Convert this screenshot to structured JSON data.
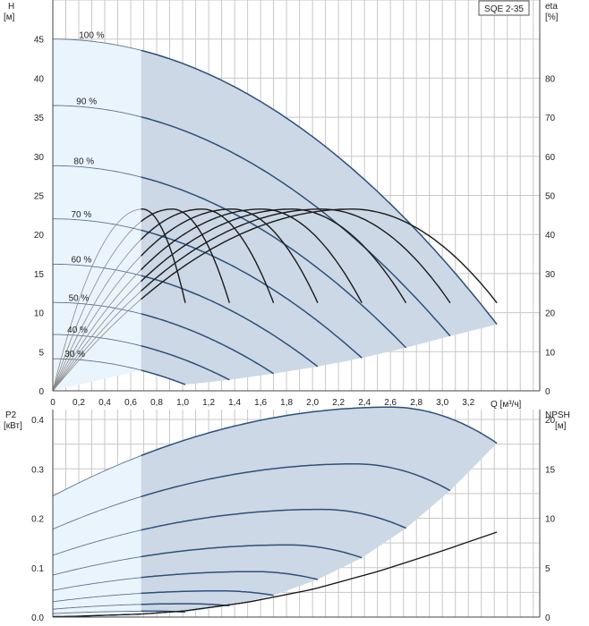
{
  "chart_data": [
    {
      "type": "line",
      "title": "SQE 2-35",
      "xlabel": "Q [м³/ч]",
      "ylabel": "H [м]",
      "ylabel_name": "H",
      "ylabel_unit": "[м]",
      "y2label_name": "eta",
      "y2label_unit": "[%]",
      "xlim": [
        0,
        3.75
      ],
      "ylim": [
        0,
        50
      ],
      "y2lim": [
        0,
        100
      ],
      "x_ticks": [
        "0",
        "0,2",
        "0,4",
        "0,6",
        "0,8",
        "1,0",
        "1,2",
        "1,4",
        "1,6",
        "1,8",
        "2,0",
        "2,2",
        "2,4",
        "2,6",
        "2,8",
        "3,0",
        "3,2"
      ],
      "y_ticks": [
        "0",
        "5",
        "10",
        "15",
        "20",
        "25",
        "30",
        "35",
        "40",
        "45"
      ],
      "y2_ticks": [
        "0",
        "10",
        "20",
        "30",
        "40",
        "50",
        "60",
        "70",
        "80"
      ],
      "grid": true,
      "light_region_x": [
        0,
        0.68
      ],
      "head_series": [
        {
          "name": "100 %",
          "h0": 45.0,
          "qmax": 3.42,
          "hend": 8.5
        },
        {
          "name": "90 %",
          "h0": 36.5,
          "qmax": 3.06,
          "hend": 7.0
        },
        {
          "name": "80 %",
          "h0": 28.8,
          "qmax": 2.72,
          "hend": 5.5
        },
        {
          "name": "70 %",
          "h0": 22.0,
          "qmax": 2.38,
          "hend": 4.2
        },
        {
          "name": "60 %",
          "h0": 16.2,
          "qmax": 2.04,
          "hend": 3.1
        },
        {
          "name": "50 %",
          "h0": 11.3,
          "qmax": 1.7,
          "hend": 2.2
        },
        {
          "name": "40 %",
          "h0": 7.2,
          "qmax": 1.36,
          "hend": 1.4
        },
        {
          "name": "30 %",
          "h0": 4.1,
          "qmax": 1.02,
          "hend": 0.8
        }
      ],
      "efficiency_series": [
        {
          "name": "100 %",
          "peak_q": 2.3,
          "peak_eta": 46.5,
          "end_q": 3.42,
          "end_eta": 22.5
        },
        {
          "name": "90 %",
          "peak_q": 2.07,
          "peak_eta": 46.5,
          "end_q": 3.06,
          "end_eta": 22.5
        },
        {
          "name": "80 %",
          "peak_q": 1.84,
          "peak_eta": 46.5,
          "end_q": 2.72,
          "end_eta": 22.5
        },
        {
          "name": "70 %",
          "peak_q": 1.61,
          "peak_eta": 46.5,
          "end_q": 2.38,
          "end_eta": 22.5
        },
        {
          "name": "60 %",
          "peak_q": 1.38,
          "peak_eta": 46.5,
          "end_q": 2.04,
          "end_eta": 22.5
        },
        {
          "name": "50 %",
          "peak_q": 1.15,
          "peak_eta": 46.5,
          "end_q": 1.7,
          "end_eta": 22.5
        },
        {
          "name": "40 %",
          "peak_q": 0.92,
          "peak_eta": 46.5,
          "end_q": 1.36,
          "end_eta": 22.5
        },
        {
          "name": "30 %",
          "peak_q": 0.69,
          "peak_eta": 46.5,
          "end_q": 1.02,
          "end_eta": 22.5
        }
      ]
    },
    {
      "type": "line",
      "title": "",
      "xlabel": "",
      "ylabel": "P2 [кВт]",
      "ylabel_name": "P2",
      "ylabel_unit": "[кВт]",
      "y2label_name": "NPSH",
      "y2label_unit": "[м]",
      "xlim": [
        0,
        3.75
      ],
      "ylim": [
        0,
        0.42
      ],
      "y2lim": [
        0,
        21
      ],
      "y_ticks": [
        "0.0",
        "0.1",
        "0.2",
        "0.3",
        "0.4"
      ],
      "y2_ticks": [
        "0",
        "5",
        "10",
        "15",
        "20"
      ],
      "grid": true,
      "power_series": [
        {
          "name": "100 %",
          "p0": 0.245,
          "qmax": 3.42,
          "ppeak": 0.425,
          "qpeak": 2.6,
          "pend": 0.352
        },
        {
          "name": "90 %",
          "p0": 0.178,
          "qmax": 3.06,
          "ppeak": 0.31,
          "qpeak": 2.33,
          "pend": 0.256
        },
        {
          "name": "80 %",
          "p0": 0.125,
          "qmax": 2.72,
          "ppeak": 0.218,
          "qpeak": 2.07,
          "pend": 0.18
        },
        {
          "name": "70 %",
          "p0": 0.085,
          "qmax": 2.38,
          "ppeak": 0.146,
          "qpeak": 1.81,
          "pend": 0.12
        },
        {
          "name": "60 %",
          "p0": 0.054,
          "qmax": 2.04,
          "ppeak": 0.092,
          "qpeak": 1.55,
          "pend": 0.076
        },
        {
          "name": "50 %",
          "p0": 0.031,
          "qmax": 1.7,
          "ppeak": 0.053,
          "qpeak": 1.29,
          "pend": 0.044
        },
        {
          "name": "40 %",
          "p0": 0.016,
          "qmax": 1.36,
          "ppeak": 0.027,
          "qpeak": 1.03,
          "pend": 0.023
        },
        {
          "name": "30 %",
          "p0": 0.007,
          "qmax": 1.02,
          "ppeak": 0.012,
          "qpeak": 0.78,
          "pend": 0.01
        }
      ],
      "npsh_series": {
        "name": "NPSH",
        "q": [
          0.68,
          1.0,
          1.5,
          2.0,
          2.5,
          3.0,
          3.42
        ],
        "h": [
          0.3,
          0.6,
          1.5,
          2.8,
          4.6,
          6.7,
          8.6
        ]
      }
    }
  ],
  "colors": {
    "grid": "#c8c8c8",
    "curve": "#2c4f7c",
    "efficiency": "#1a1a1a",
    "region_dark": "#ccd8e5",
    "region_light": "#eaf4fd",
    "thin": "#5f738c"
  }
}
